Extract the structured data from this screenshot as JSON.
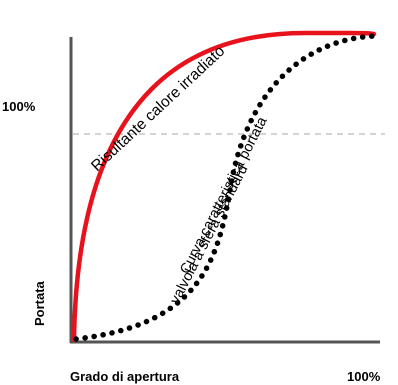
{
  "labels": {
    "y_100": "100%",
    "y_axis": "Portata",
    "x_axis": "Grado di apertura",
    "x_100": "100%",
    "red_curve": "Risultante calore irradiato",
    "dotted_curve_line1": "Curva caratteristica portata",
    "dotted_curve_line2": "valvola a sfera standard"
  },
  "colors": {
    "axis": "#555555",
    "red_curve": "#e8121c",
    "dotted_curve": "#000000",
    "reference_line": "#bbbbbb"
  }
}
